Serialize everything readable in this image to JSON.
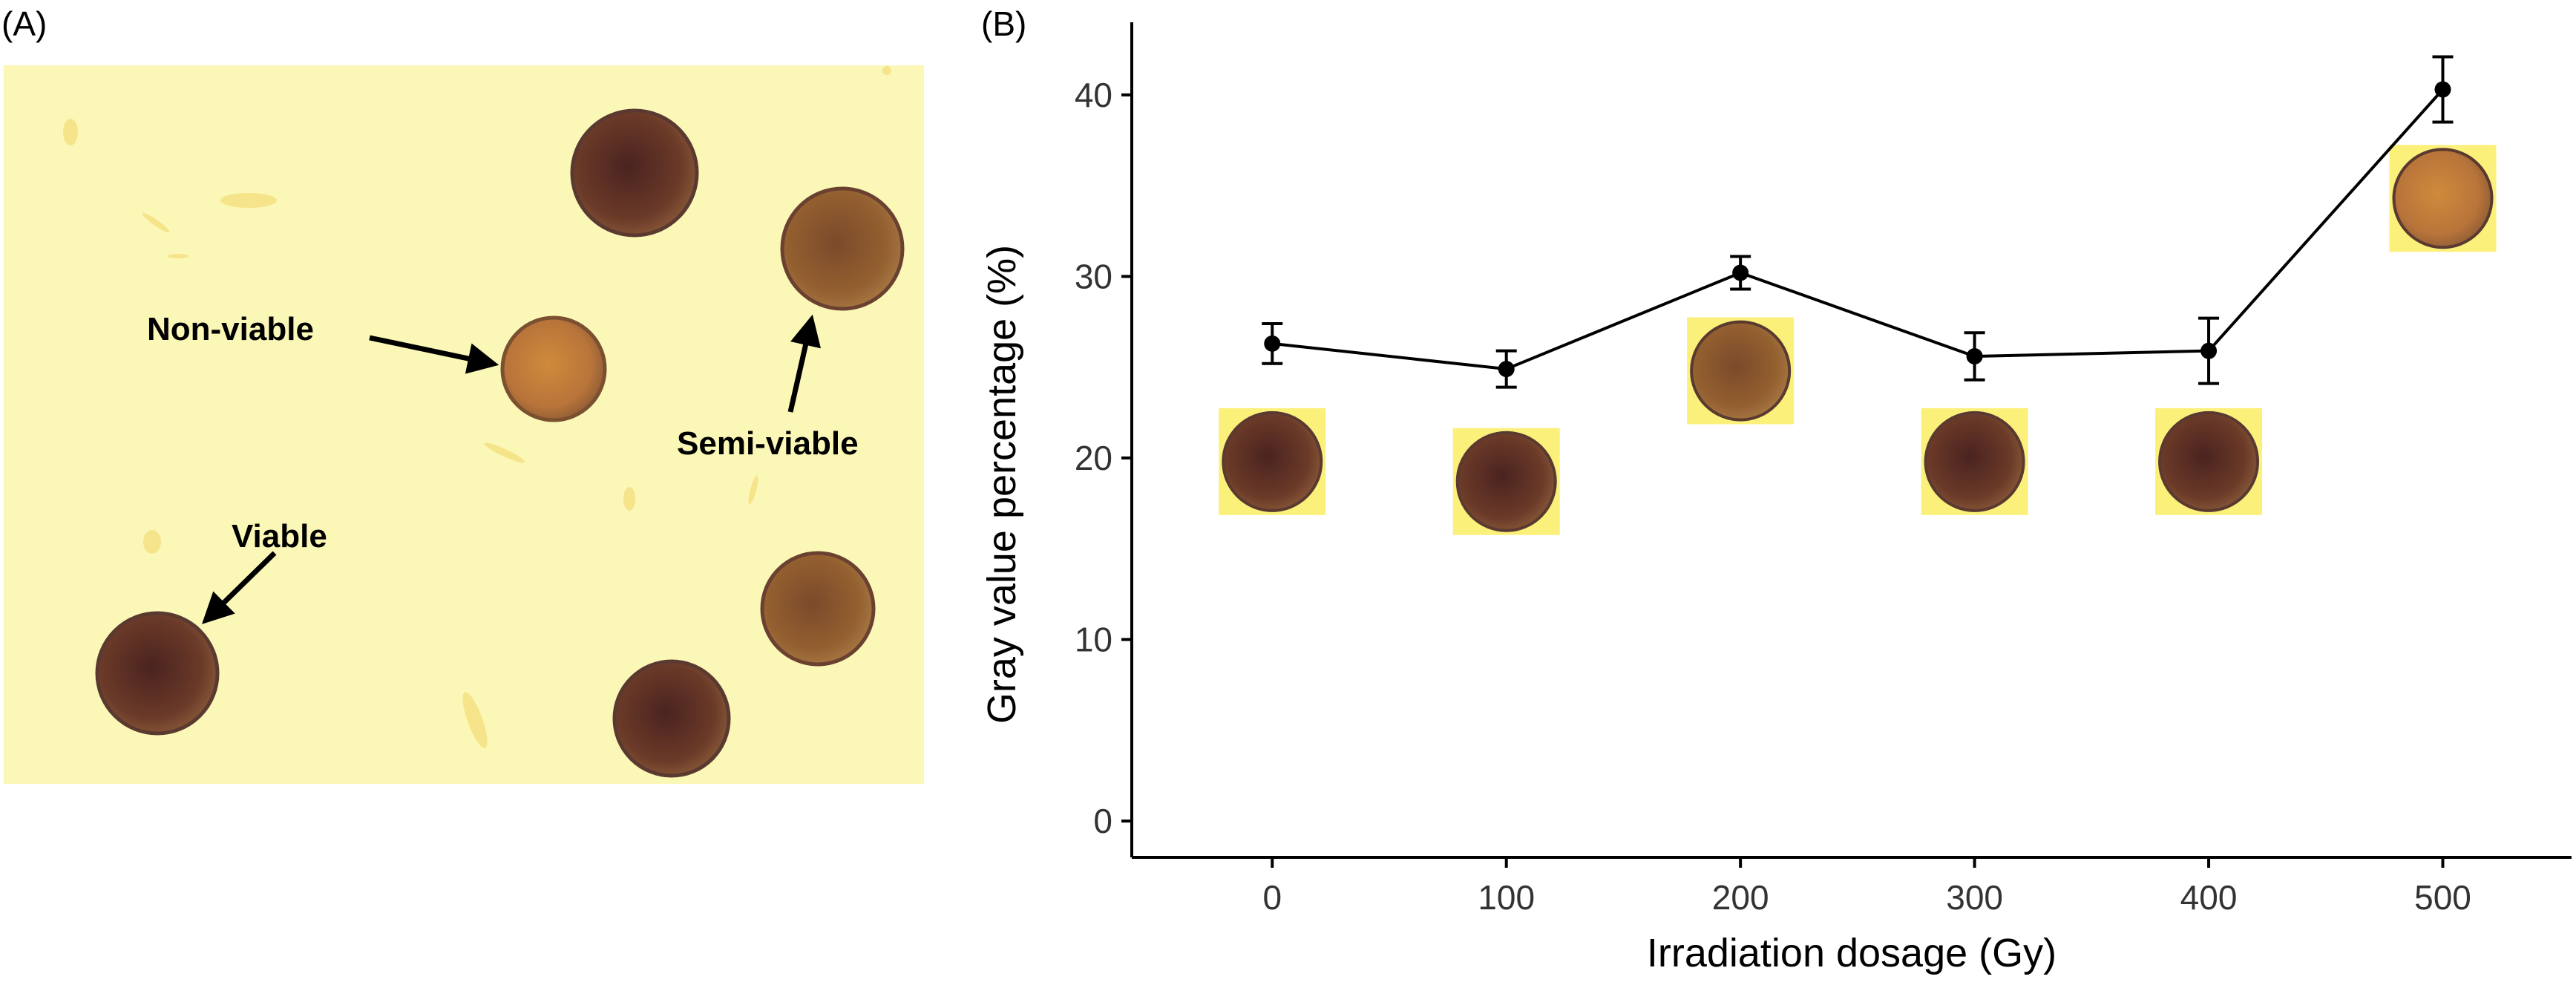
{
  "panel_a": {
    "label": "(A)",
    "annotations": {
      "non_viable": "Non-viable",
      "semi_viable": "Semi-viable",
      "viable": "Viable"
    }
  },
  "panel_b": {
    "label": "(B)"
  },
  "colors": {
    "micrograph_bg": "#fbf7b6",
    "cell_dark": "#5a2f24",
    "cell_mid": "#8a4e2c",
    "cell_light": "#c07a3a",
    "line": "#000000",
    "axis": "#000000",
    "tick_text": "#333333"
  },
  "chart_data": {
    "type": "line",
    "title": "",
    "xlabel": "Irradiation dosage (Gy)",
    "ylabel": "Gray value percentage (%)",
    "x": [
      0,
      100,
      200,
      300,
      400,
      500
    ],
    "values": [
      26.3,
      24.9,
      30.2,
      25.6,
      25.9,
      40.3
    ],
    "error": [
      1.1,
      1.0,
      0.9,
      1.3,
      1.8,
      1.8
    ],
    "xlim": [
      -60,
      555
    ],
    "ylim": [
      -2,
      44
    ],
    "xticks": [
      0,
      100,
      200,
      300,
      400,
      500
    ],
    "yticks": [
      0,
      10,
      20,
      30,
      40
    ],
    "grid": false,
    "insets": [
      {
        "x": 0,
        "y": 19.8,
        "shade": "dark"
      },
      {
        "x": 100,
        "y": 18.7,
        "shade": "dark"
      },
      {
        "x": 200,
        "y": 24.8,
        "shade": "mid"
      },
      {
        "x": 300,
        "y": 19.8,
        "shade": "dark"
      },
      {
        "x": 400,
        "y": 19.8,
        "shade": "dark"
      },
      {
        "x": 500,
        "y": 34.3,
        "shade": "light"
      }
    ]
  }
}
